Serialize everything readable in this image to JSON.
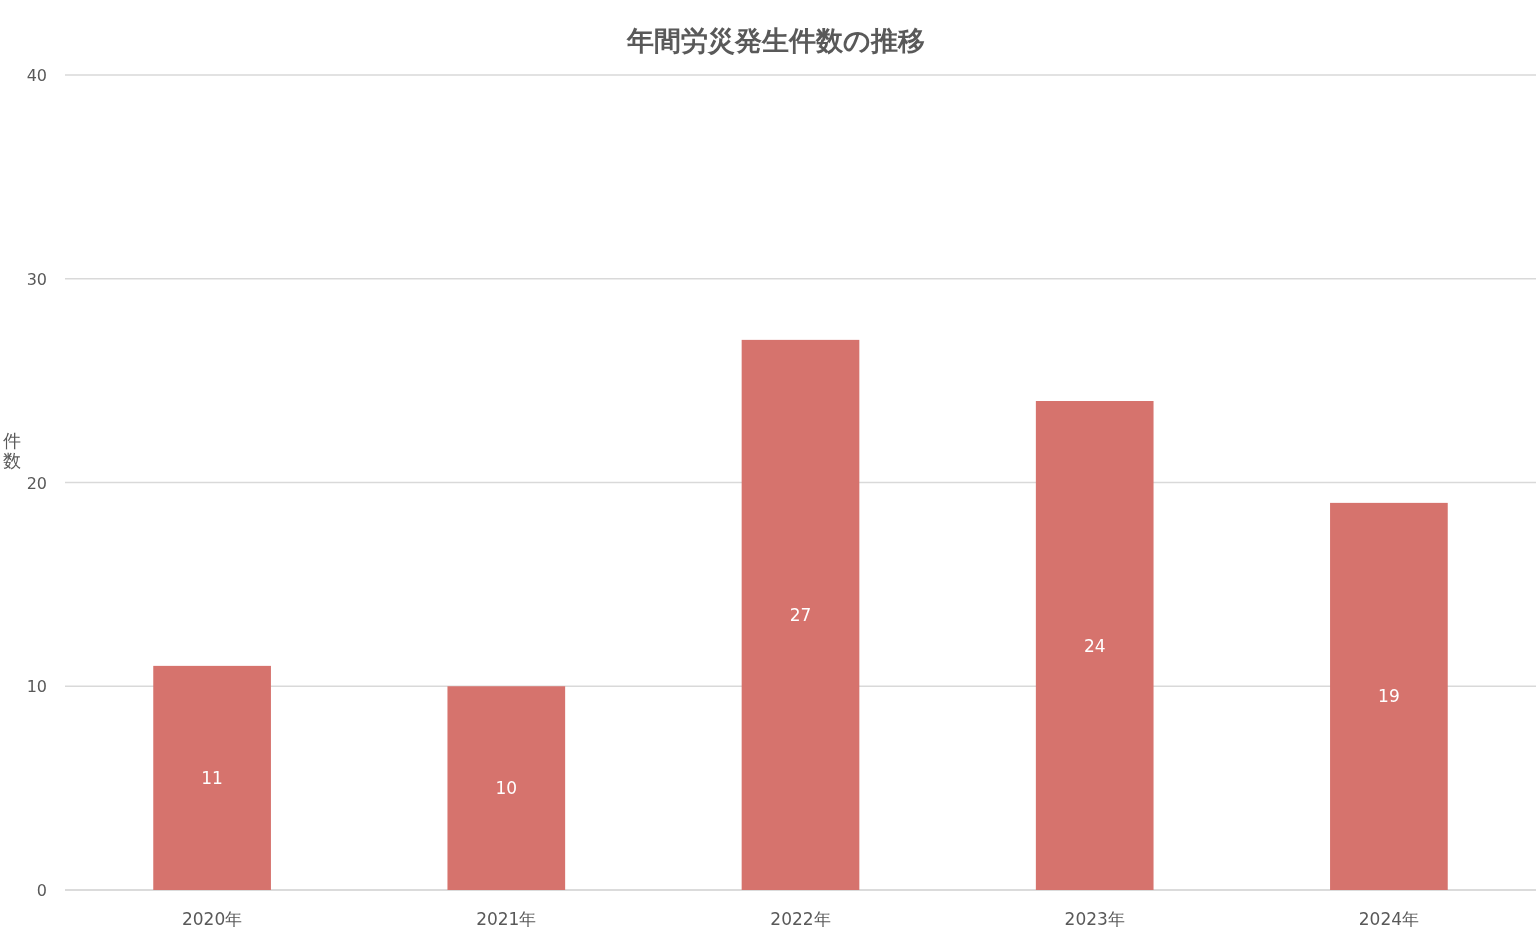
{
  "chart_data": {
    "type": "bar",
    "title": "年間労災発生件数の推移",
    "ylabel": "件数",
    "categories": [
      "2020年",
      "2021年",
      "2022年",
      "2023年",
      "2024年"
    ],
    "values": [
      11,
      10,
      27,
      24,
      19
    ],
    "color": "#d6736d",
    "ylim": [
      0,
      40
    ],
    "yticks": [
      0,
      10,
      20,
      30,
      40
    ],
    "grid": "y",
    "data_labels": true
  }
}
